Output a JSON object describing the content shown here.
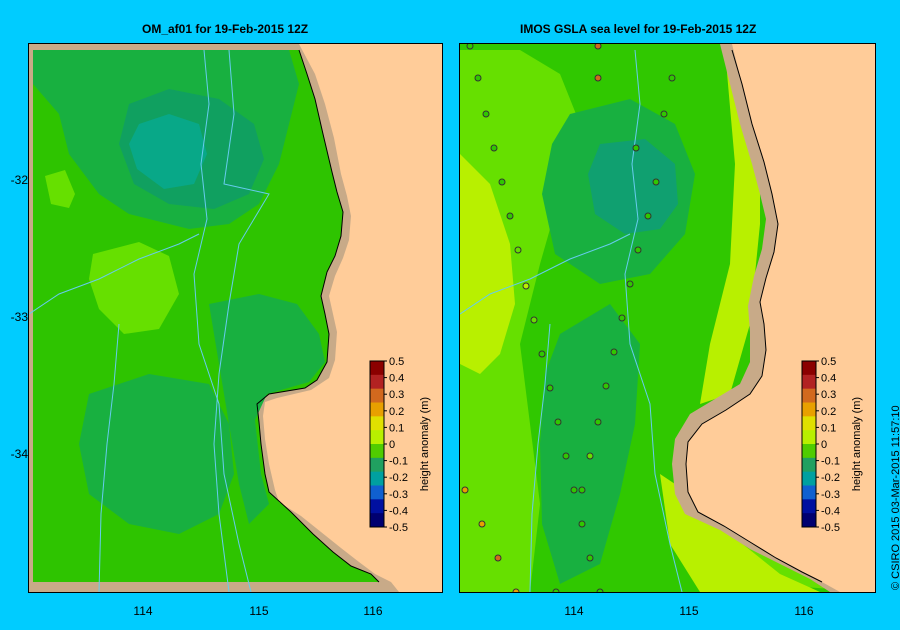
{
  "panels": [
    {
      "title": "OM_af01  for 19-Feb-2015 12Z"
    },
    {
      "title": "IMOS GSLA sea level  for 19-Feb-2015 12Z"
    }
  ],
  "axes": {
    "y_ticks": [
      "-32",
      "-33",
      "-34"
    ],
    "x_ticks": [
      "114",
      "115",
      "116"
    ]
  },
  "colorbar": {
    "label": "height anomaly (m)",
    "ticks": [
      "0.5",
      "0.4",
      "0.3",
      "0.2",
      "0.1",
      "0",
      "-0.1",
      "-0.2",
      "-0.3",
      "-0.4",
      "-0.5"
    ],
    "colors": [
      "#8b0000",
      "#b22222",
      "#d2691e",
      "#e8a000",
      "#e0e000",
      "#b8f000",
      "#50cc00",
      "#20a060",
      "#00a0a0",
      "#1060d0",
      "#0010a0",
      "#000070"
    ]
  },
  "colors": {
    "land": "#ffcc99",
    "shelf_land": "#c8aa88",
    "background": "#00ccff",
    "coast": "#000000",
    "bathymetry": "#66ccee"
  },
  "credit": "© CSIRO 2015   03-Mar-2015 11:57:10"
}
